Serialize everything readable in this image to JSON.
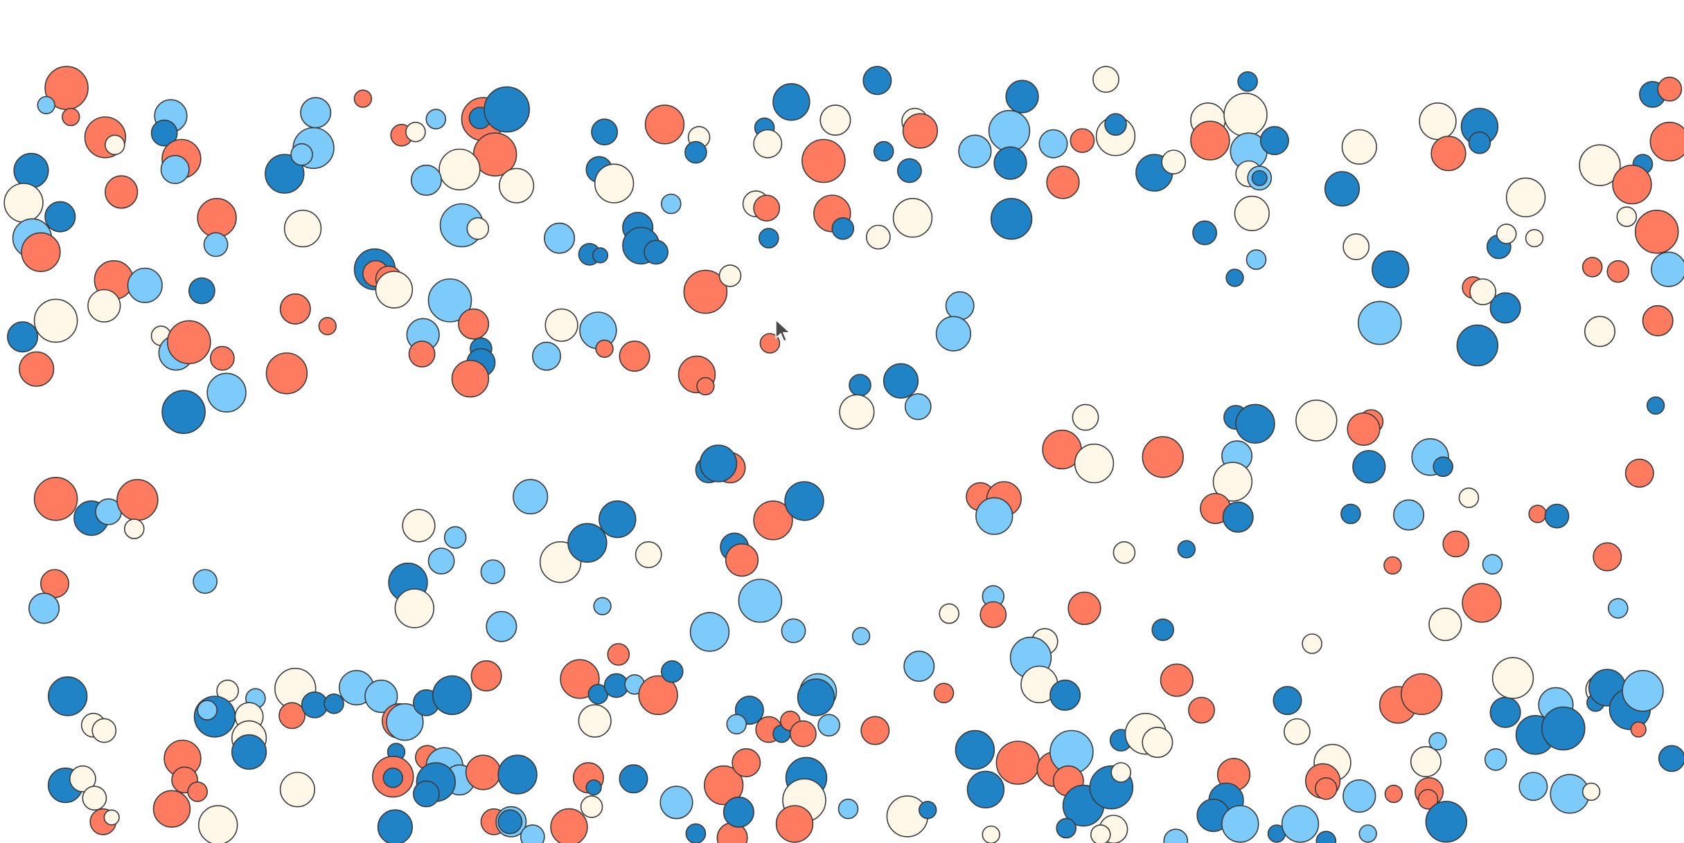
{
  "palette": {
    "coral": "#ff7b5f",
    "light_blue": "#7dcbfb",
    "dark_blue": "#2083c6",
    "cream": "#fff8e8",
    "outline": "#3a3a3a"
  },
  "pointer": {
    "icon": "cursor-arrow-icon"
  }
}
